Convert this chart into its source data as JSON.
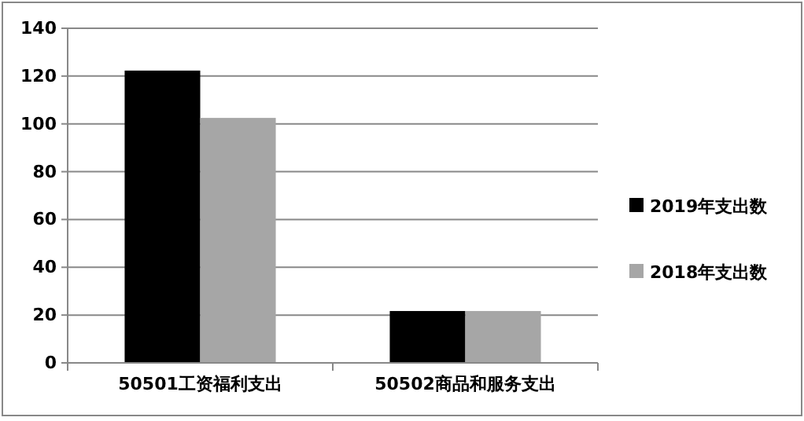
{
  "chart_data": {
    "type": "bar",
    "categories": [
      "50501工资福利支出",
      "50502商品和服务支出"
    ],
    "series": [
      {
        "name": "2019年支出数",
        "color": "#000000",
        "values": [
          122.3,
          21.7
        ]
      },
      {
        "name": "2018年支出数",
        "color": "#a6a6a6",
        "values": [
          102.5,
          21.7
        ]
      }
    ],
    "ylim": [
      0,
      140
    ],
    "yticks": [
      0,
      20,
      40,
      60,
      80,
      100,
      120,
      140
    ],
    "grid": "y",
    "legend": "right"
  }
}
